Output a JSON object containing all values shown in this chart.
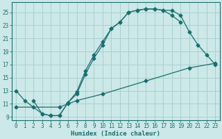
{
  "xlabel": "Humidex (Indice chaleur)",
  "ylabel": "",
  "background_color": "#cce8e8",
  "grid_color": "#aacfcf",
  "line_color": "#1a6e6e",
  "xlim": [
    -0.5,
    23.5
  ],
  "ylim": [
    8.5,
    26.5
  ],
  "xticks": [
    0,
    1,
    2,
    3,
    4,
    5,
    6,
    7,
    8,
    9,
    10,
    11,
    12,
    13,
    14,
    15,
    16,
    17,
    18,
    19,
    20,
    21,
    22,
    23
  ],
  "yticks": [
    9,
    11,
    13,
    15,
    17,
    19,
    21,
    23,
    25
  ],
  "curve1_x": [
    0,
    1,
    2,
    3,
    4,
    5,
    6,
    7,
    8,
    9,
    10,
    11,
    12,
    13,
    14,
    15,
    16,
    17,
    18,
    19
  ],
  "curve1_y": [
    13,
    11.5,
    10.5,
    9.5,
    9.2,
    9.2,
    11.2,
    12.8,
    16.0,
    18.5,
    20.5,
    22.5,
    23.5,
    25.0,
    25.3,
    25.5,
    25.5,
    25.3,
    24.5,
    23.5
  ],
  "curve2_x": [
    2,
    3,
    4,
    5,
    6,
    7,
    8,
    9,
    10,
    11,
    12,
    13,
    14,
    15,
    16,
    17,
    18,
    19,
    20,
    21,
    22,
    23
  ],
  "curve2_y": [
    11.5,
    9.5,
    9.2,
    9.2,
    11.2,
    12.5,
    15.5,
    18.0,
    20.0,
    22.5,
    23.5,
    25.0,
    25.3,
    25.5,
    25.5,
    25.3,
    25.3,
    24.5,
    22.0,
    20.0,
    18.5,
    17.0
  ],
  "curve3_x": [
    0,
    5,
    6,
    7,
    10,
    15,
    20,
    23
  ],
  "curve3_y": [
    10.5,
    10.5,
    11.0,
    11.5,
    12.5,
    14.5,
    16.5,
    17.2
  ],
  "title_fontsize": 7.0,
  "label_fontsize": 6.5,
  "tick_fontsize": 5.5
}
